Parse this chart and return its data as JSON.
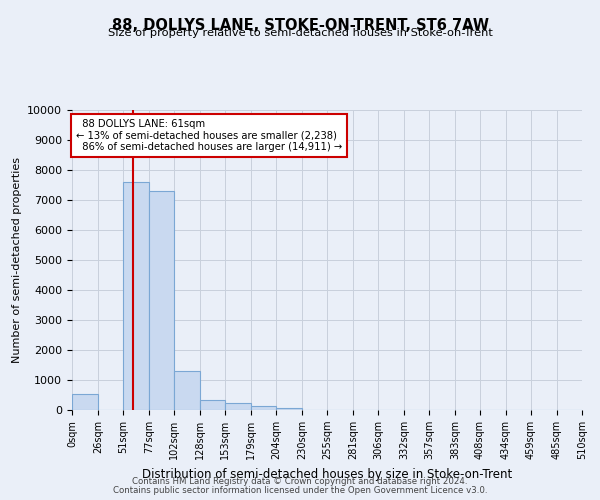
{
  "title": "88, DOLLYS LANE, STOKE-ON-TRENT, ST6 7AW",
  "subtitle": "Size of property relative to semi-detached houses in Stoke-on-Trent",
  "xlabel": "Distribution of semi-detached houses by size in Stoke-on-Trent",
  "ylabel": "Number of semi-detached properties",
  "footnote1": "Contains HM Land Registry data © Crown copyright and database right 2024.",
  "footnote2": "Contains public sector information licensed under the Open Government Licence v3.0.",
  "property_size": 61,
  "property_label": "88 DOLLYS LANE: 61sqm",
  "pct_smaller": 13,
  "pct_larger": 86,
  "n_smaller": 2238,
  "n_larger": 14911,
  "bin_edges": [
    0,
    26,
    51,
    77,
    102,
    128,
    153,
    179,
    204,
    230,
    255,
    281,
    306,
    332,
    357,
    383,
    408,
    434,
    459,
    485,
    510
  ],
  "bin_labels": [
    "0sqm",
    "26sqm",
    "51sqm",
    "77sqm",
    "102sqm",
    "128sqm",
    "153sqm",
    "179sqm",
    "204sqm",
    "230sqm",
    "255sqm",
    "281sqm",
    "306sqm",
    "332sqm",
    "357sqm",
    "383sqm",
    "408sqm",
    "434sqm",
    "459sqm",
    "485sqm",
    "510sqm"
  ],
  "bar_heights": [
    550,
    0,
    7600,
    7300,
    1300,
    350,
    250,
    150,
    80,
    0,
    0,
    0,
    0,
    0,
    0,
    0,
    0,
    0,
    0,
    0
  ],
  "bar_color": "#c9d9f0",
  "bar_edge_color": "#7ba7d4",
  "grid_color": "#c8d0dc",
  "background_color": "#eaeff8",
  "annotation_box_color": "#ffffff",
  "annotation_box_edge": "#cc0000",
  "redline_color": "#cc0000",
  "ylim": [
    0,
    10000
  ],
  "yticks": [
    0,
    1000,
    2000,
    3000,
    4000,
    5000,
    6000,
    7000,
    8000,
    9000,
    10000
  ]
}
